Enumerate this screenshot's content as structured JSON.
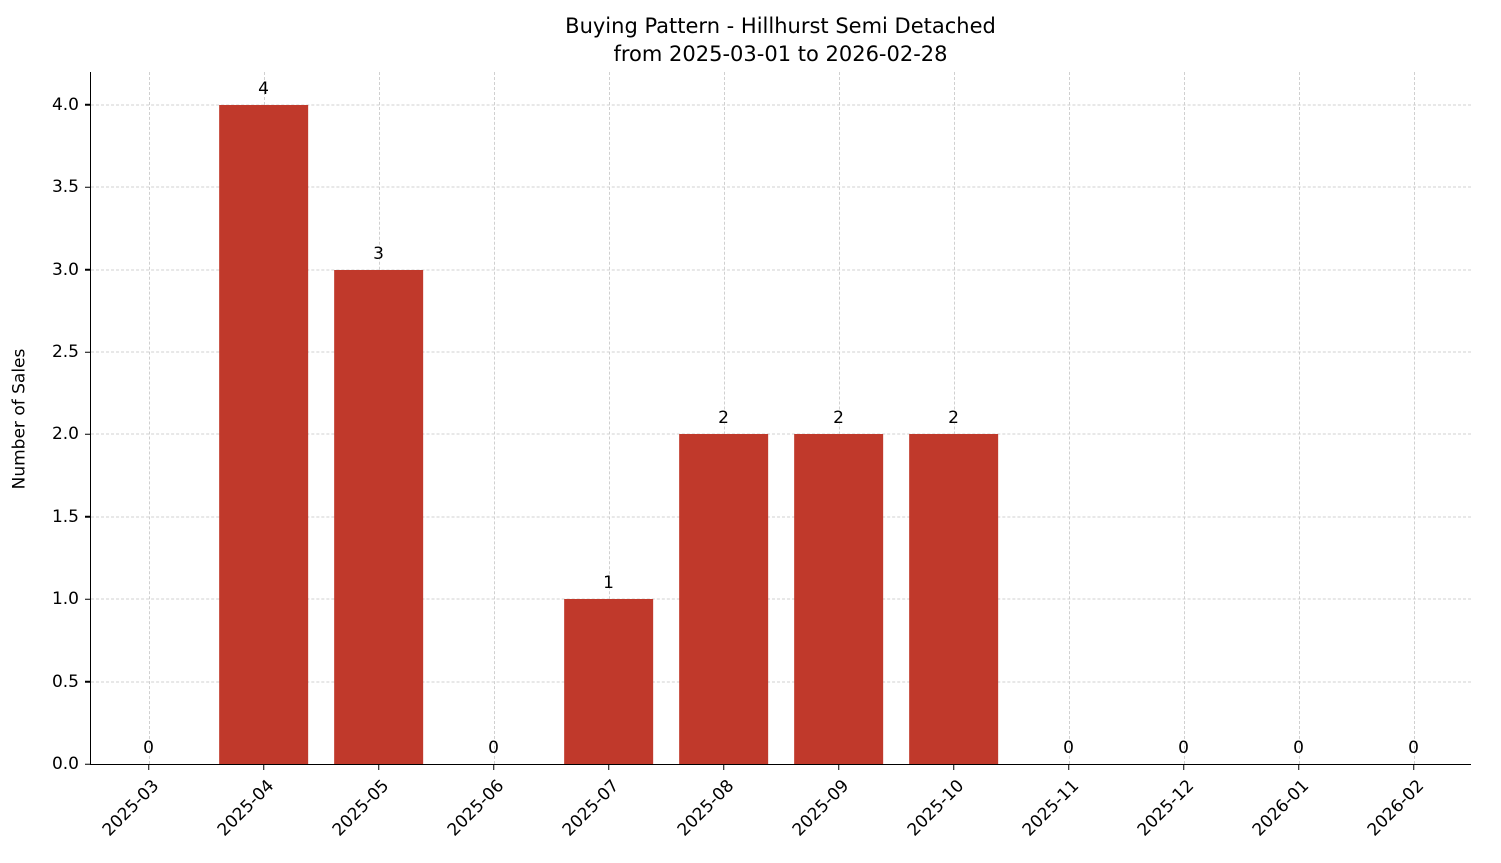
{
  "title": {
    "line1": "Buying Pattern - Hillhurst Semi Detached",
    "line2": "from 2025-03-01 to 2026-02-28"
  },
  "chart_data": {
    "type": "bar",
    "title": "Buying Pattern - Hillhurst Semi Detached\nfrom 2025-03-01 to 2026-02-28",
    "categories": [
      "2025-03",
      "2025-04",
      "2025-05",
      "2025-06",
      "2025-07",
      "2025-08",
      "2025-09",
      "2025-10",
      "2025-11",
      "2025-12",
      "2026-01",
      "2026-02"
    ],
    "values": [
      0,
      4,
      3,
      0,
      1,
      2,
      2,
      2,
      0,
      0,
      0,
      0
    ],
    "value_labels": [
      "0",
      "4",
      "3",
      "0",
      "1",
      "2",
      "2",
      "2",
      "0",
      "0",
      "0",
      "0"
    ],
    "xlabel": "",
    "ylabel": "Number of Sales",
    "ylim": [
      0,
      4.2
    ],
    "yticks": [
      0.0,
      0.5,
      1.0,
      1.5,
      2.0,
      2.5,
      3.0,
      3.5,
      4.0
    ],
    "ytick_labels": [
      "0.0",
      "0.5",
      "1.0",
      "1.5",
      "2.0",
      "2.5",
      "3.0",
      "3.5",
      "4.0"
    ],
    "bar_color": "#c0392b",
    "grid": true,
    "grid_style": "dashed",
    "legend_position": "none",
    "bar_width_fraction": 0.78
  }
}
